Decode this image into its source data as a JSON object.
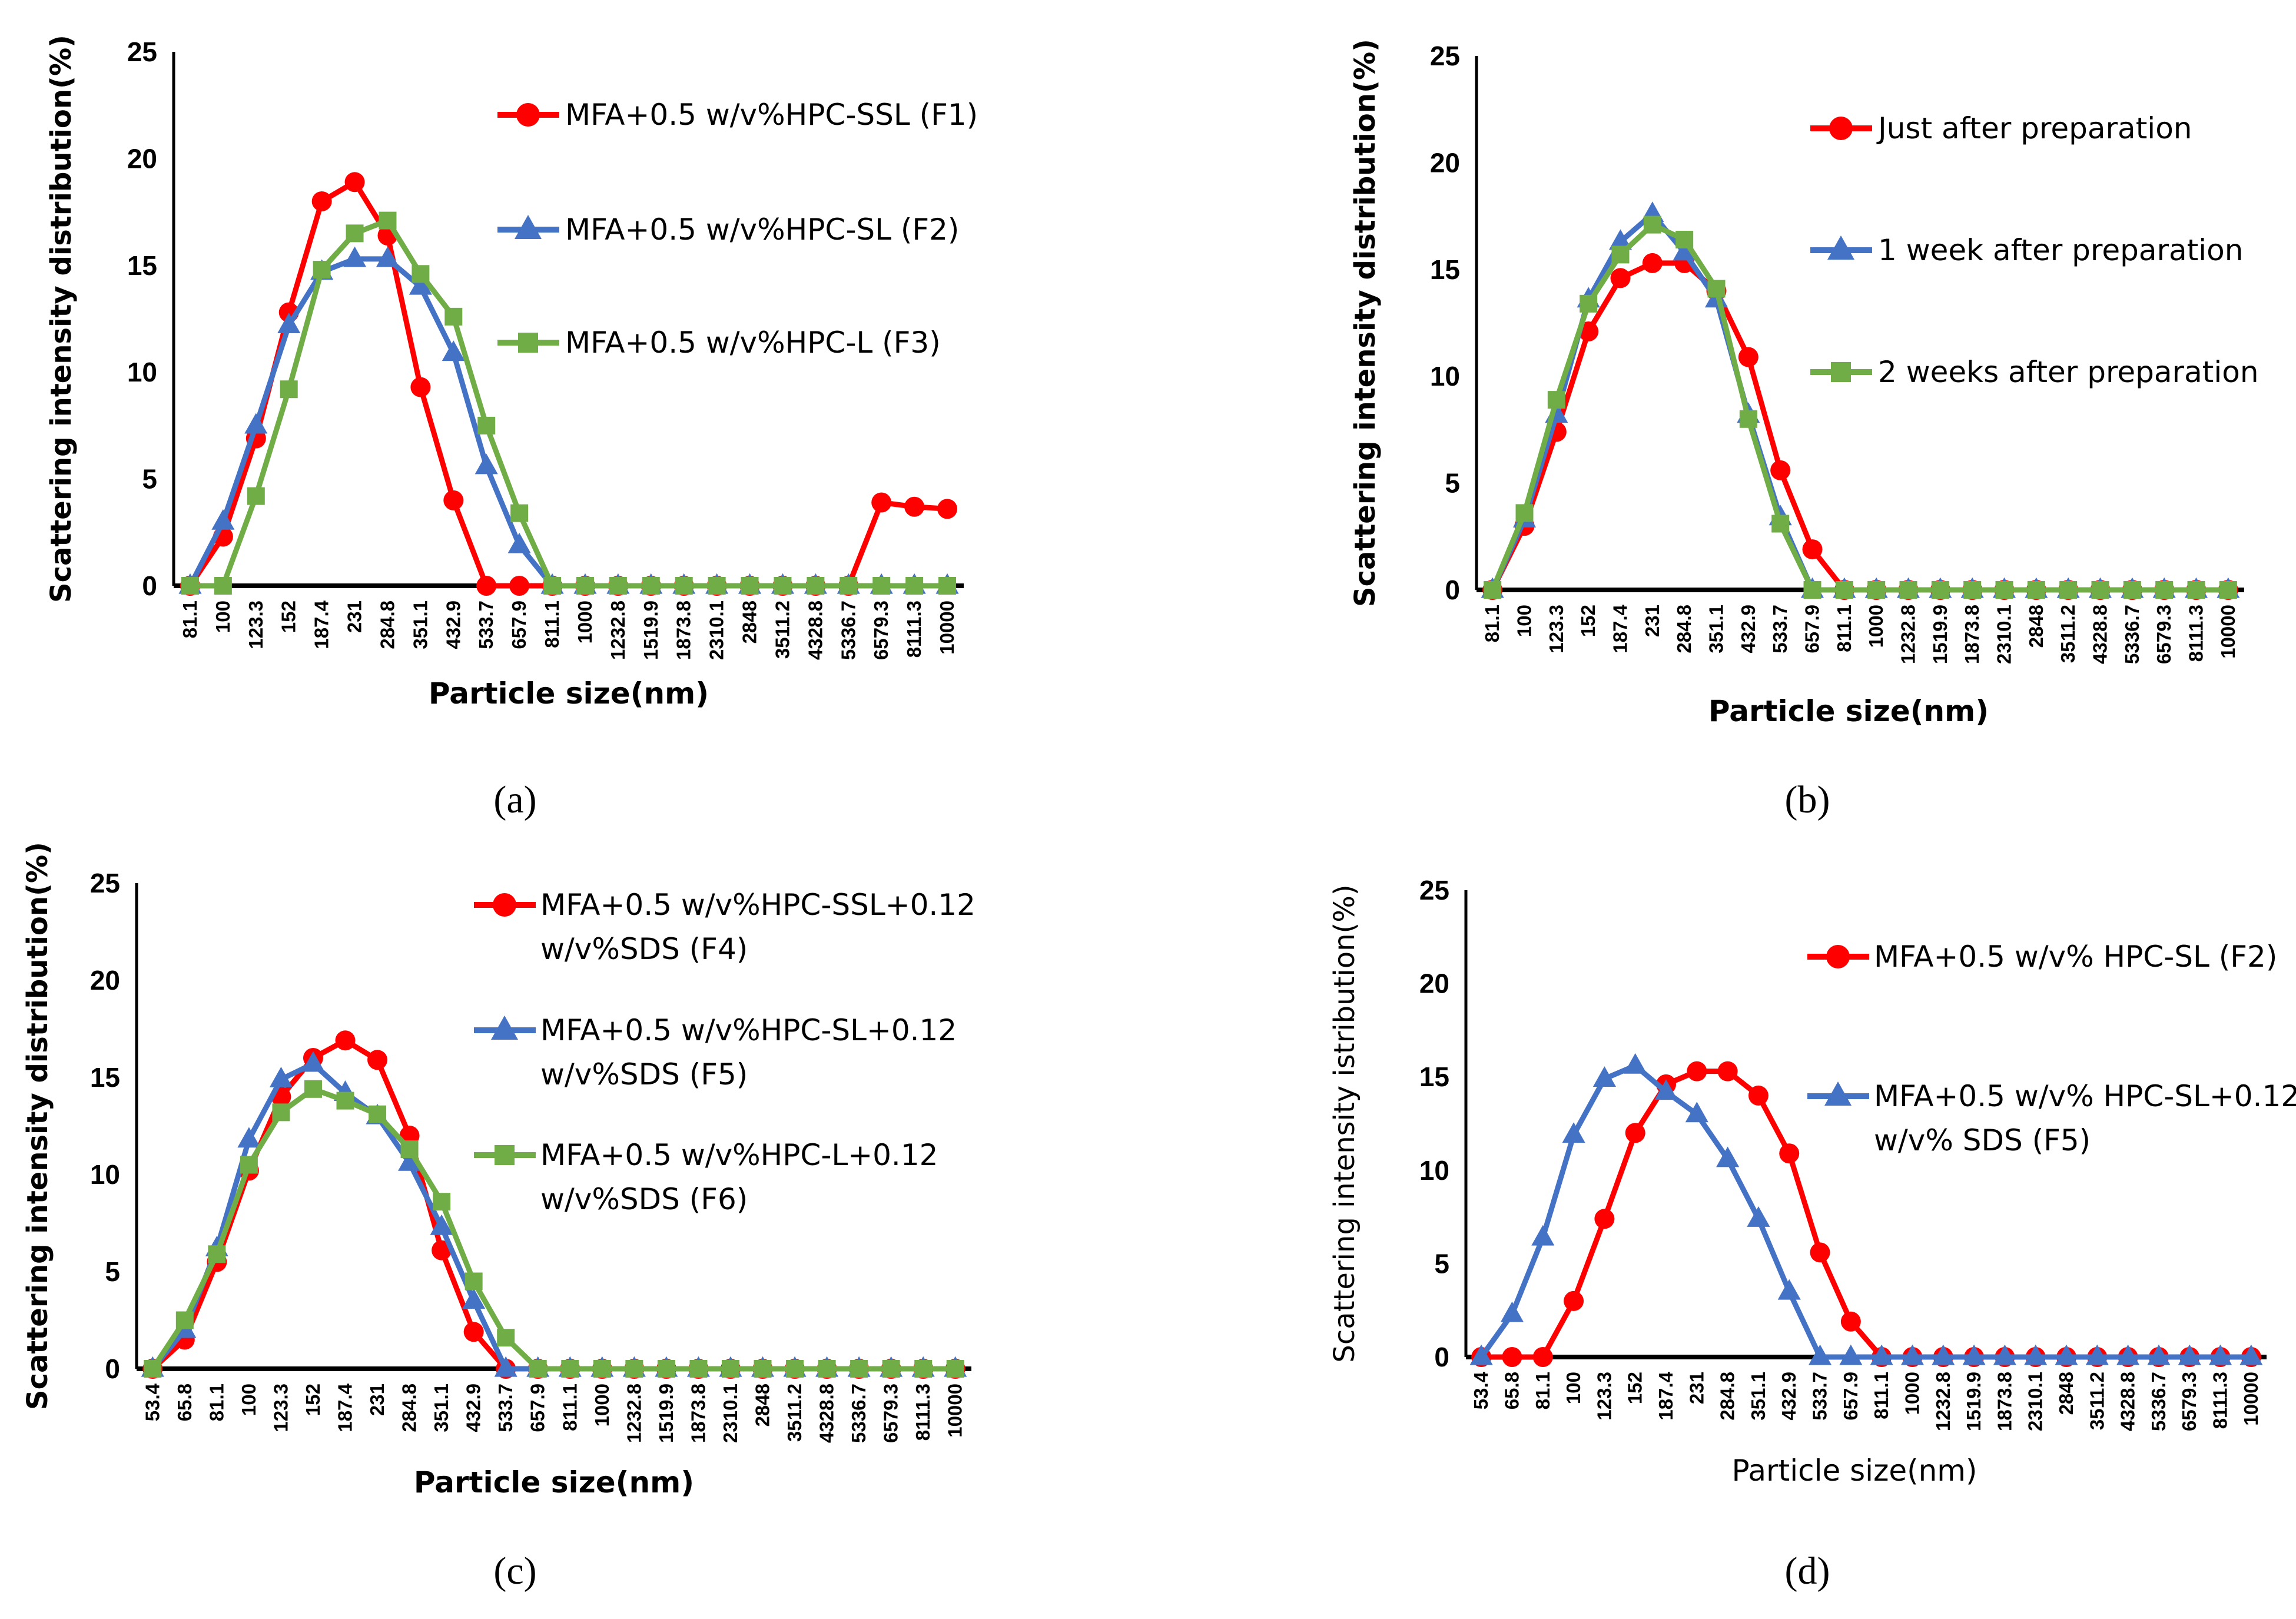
{
  "chart_data": [
    {
      "panel": "a",
      "caption": "(a)",
      "type": "line",
      "title": "",
      "xlabel": "Particle size(nm)",
      "ylabel": "Scattering intensity distribution(%)",
      "ylim": [
        0,
        25
      ],
      "yticks": [
        "0",
        "5",
        "10",
        "15",
        "20",
        "25"
      ],
      "grid": false,
      "legend_position": "top-right",
      "categories": [
        "81.1",
        "100",
        "123.3",
        "152",
        "187.4",
        "231",
        "284.8",
        "351.1",
        "432.9",
        "533.7",
        "657.9",
        "811.1",
        "1000",
        "1232.8",
        "1519.9",
        "1873.8",
        "2310.1",
        "2848",
        "3511.2",
        "4328.8",
        "5336.7",
        "6579.3",
        "8111.3",
        "10000"
      ],
      "series": [
        {
          "name": "MFA+0.5 w/v%HPC-SSL (F1)",
          "legend_lines": [
            "MFA+0.5 w/v%HPC-SSL (F1)"
          ],
          "color": "#ff0000",
          "marker": "circle",
          "values": [
            0,
            2.3,
            6.9,
            12.8,
            18.0,
            18.9,
            16.4,
            9.3,
            4.0,
            0,
            0,
            0,
            0,
            0,
            0,
            0,
            0,
            0,
            0,
            0,
            0,
            3.9,
            3.7,
            3.6
          ]
        },
        {
          "name": "MFA+0.5 w/v%HPC-SL (F2)",
          "legend_lines": [
            "MFA+0.5 w/v%HPC-SL (F2)"
          ],
          "color": "#4472c4",
          "marker": "triangle",
          "values": [
            0,
            3.0,
            7.5,
            12.2,
            14.7,
            15.3,
            15.3,
            14.0,
            10.9,
            5.6,
            1.9,
            0,
            0,
            0,
            0,
            0,
            0,
            0,
            0,
            0,
            0,
            0,
            0,
            0
          ]
        },
        {
          "name": "MFA+0.5 w/v%HPC-L (F3)",
          "legend_lines": [
            "MFA+0.5 w/v%HPC-L (F3)"
          ],
          "color": "#70ad47",
          "marker": "square",
          "values": [
            0,
            0,
            4.2,
            9.2,
            14.8,
            16.5,
            17.1,
            14.6,
            12.6,
            7.5,
            3.4,
            0,
            0,
            0,
            0,
            0,
            0,
            0,
            0,
            0,
            0,
            0,
            0,
            0
          ]
        }
      ]
    },
    {
      "panel": "b",
      "caption": "(b)",
      "type": "line",
      "title": "",
      "xlabel": "Particle size(nm)",
      "ylabel": "Scattering intensity distribution(%)",
      "ylim": [
        0,
        25
      ],
      "yticks": [
        "0",
        "5",
        "10",
        "15",
        "20",
        "25"
      ],
      "grid": false,
      "legend_position": "top-right",
      "categories": [
        "81.1",
        "100",
        "123.3",
        "152",
        "187.4",
        "231",
        "284.8",
        "351.1",
        "432.9",
        "533.7",
        "657.9",
        "811.1",
        "1000",
        "1232.8",
        "1519.9",
        "1873.8",
        "2310.1",
        "2848",
        "3511.2",
        "4328.8",
        "5336.7",
        "6579.3",
        "8111.3",
        "10000"
      ],
      "series": [
        {
          "name": "Just after preparation",
          "legend_lines": [
            "Just after preparation"
          ],
          "color": "#ff0000",
          "marker": "circle",
          "values": [
            0,
            3.0,
            7.4,
            12.1,
            14.6,
            15.3,
            15.3,
            14.0,
            10.9,
            5.6,
            1.9,
            0,
            0,
            0,
            0,
            0,
            0,
            0,
            0,
            0,
            0,
            0,
            0,
            0
          ]
        },
        {
          "name": "1 week after preparation",
          "legend_lines": [
            "1 week after preparation"
          ],
          "color": "#4472c4",
          "marker": "triangle",
          "values": [
            0,
            3.3,
            8.2,
            13.6,
            16.3,
            17.6,
            15.8,
            13.6,
            8.2,
            3.4,
            0,
            0,
            0,
            0,
            0,
            0,
            0,
            0,
            0,
            0,
            0,
            0,
            0,
            0
          ]
        },
        {
          "name": "2 weeks after preparation",
          "legend_lines": [
            "2 weeks after preparation"
          ],
          "color": "#70ad47",
          "marker": "square",
          "values": [
            0,
            3.6,
            8.9,
            13.4,
            15.7,
            17.1,
            16.4,
            14.1,
            8.0,
            3.1,
            0,
            0,
            0,
            0,
            0,
            0,
            0,
            0,
            0,
            0,
            0,
            0,
            0,
            0
          ]
        }
      ]
    },
    {
      "panel": "c",
      "caption": "(c)",
      "type": "line",
      "title": "",
      "xlabel": "Particle size(nm)",
      "ylabel": "Scattering intensity distribution(%)",
      "ylim": [
        0,
        25
      ],
      "yticks": [
        "0",
        "5",
        "10",
        "15",
        "20",
        "25"
      ],
      "grid": false,
      "legend_position": "top-right",
      "categories": [
        "53.4",
        "65.8",
        "81.1",
        "100",
        "123.3",
        "152",
        "187.4",
        "231",
        "284.8",
        "351.1",
        "432.9",
        "533.7",
        "657.9",
        "811.1",
        "1000",
        "1232.8",
        "1519.9",
        "1873.8",
        "2310.1",
        "2848",
        "3511.2",
        "4328.8",
        "5336.7",
        "6579.3",
        "8111.3",
        "10000"
      ],
      "series": [
        {
          "name": "MFA+0.5 w/v%HPC-SSL+0.12 w/v%SDS (F4)",
          "legend_lines": [
            "MFA+0.5 w/v%HPC-SSL+0.12",
            "w/v%SDS (F4)"
          ],
          "color": "#ff0000",
          "marker": "circle",
          "values": [
            0,
            1.5,
            5.5,
            10.2,
            14.0,
            16.0,
            16.9,
            15.9,
            12.0,
            6.1,
            1.9,
            0,
            0,
            0,
            0,
            0,
            0,
            0,
            0,
            0,
            0,
            0,
            0,
            0,
            0,
            0
          ]
        },
        {
          "name": "MFA+0.5 w/v%HPC-SL+0.12 w/v%SDS (F5)",
          "legend_lines": [
            "MFA+0.5 w/v%HPC-SL+0.12",
            "w/v%SDS (F5)"
          ],
          "color": "#4472c4",
          "marker": "triangle",
          "values": [
            0,
            2.0,
            6.2,
            11.8,
            14.9,
            15.7,
            14.2,
            13.0,
            10.6,
            7.3,
            3.5,
            0,
            0,
            0,
            0,
            0,
            0,
            0,
            0,
            0,
            0,
            0,
            0,
            0,
            0,
            0
          ]
        },
        {
          "name": "MFA+0.5 w/v%HPC-L+0.12 w/v%SDS (F6)",
          "legend_lines": [
            "MFA+0.5 w/v%HPC-L+0.12",
            "w/v%SDS (F6)"
          ],
          "color": "#70ad47",
          "marker": "square",
          "values": [
            0,
            2.5,
            5.9,
            10.5,
            13.2,
            14.4,
            13.8,
            13.1,
            11.3,
            8.6,
            4.5,
            1.6,
            0,
            0,
            0,
            0,
            0,
            0,
            0,
            0,
            0,
            0,
            0,
            0,
            0,
            0
          ]
        }
      ]
    },
    {
      "panel": "d",
      "caption": "(d)",
      "type": "line",
      "title": "",
      "xlabel": "Particle size(nm)",
      "ylabel": "Scattering intensity istribution(%)",
      "ylim": [
        0,
        25
      ],
      "yticks": [
        "0",
        "5",
        "10",
        "15",
        "20",
        "25"
      ],
      "grid": false,
      "legend_position": "top-right",
      "categories": [
        "53.4",
        "65.8",
        "81.1",
        "100",
        "123.3",
        "152",
        "187.4",
        "231",
        "284.8",
        "351.1",
        "432.9",
        "533.7",
        "657.9",
        "811.1",
        "1000",
        "1232.8",
        "1519.9",
        "1873.8",
        "2310.1",
        "2848",
        "3511.2",
        "4328.8",
        "5336.7",
        "6579.3",
        "8111.3",
        "10000"
      ],
      "series": [
        {
          "name": "MFA+0.5 w/v% HPC-SL (F2)",
          "legend_lines": [
            "MFA+0.5 w/v% HPC-SL (F2)"
          ],
          "color": "#ff0000",
          "marker": "circle",
          "values": [
            0,
            0,
            0,
            3.0,
            7.4,
            12.0,
            14.6,
            15.3,
            15.3,
            14.0,
            10.9,
            5.6,
            1.9,
            0,
            0,
            0,
            0,
            0,
            0,
            0,
            0,
            0,
            0,
            0,
            0,
            0
          ]
        },
        {
          "name": "MFA+0.5 w/v% HPC-SL+0.12 w/v% SDS (F5)",
          "legend_lines": [
            "MFA+0.5 w/v% HPC-SL+0.12",
            "w/v% SDS (F5)"
          ],
          "color": "#4472c4",
          "marker": "triangle",
          "values": [
            0,
            2.3,
            6.4,
            11.9,
            14.9,
            15.6,
            14.2,
            13.0,
            10.6,
            7.4,
            3.5,
            0,
            0,
            0,
            0,
            0,
            0,
            0,
            0,
            0,
            0,
            0,
            0,
            0,
            0,
            0
          ]
        }
      ]
    }
  ]
}
